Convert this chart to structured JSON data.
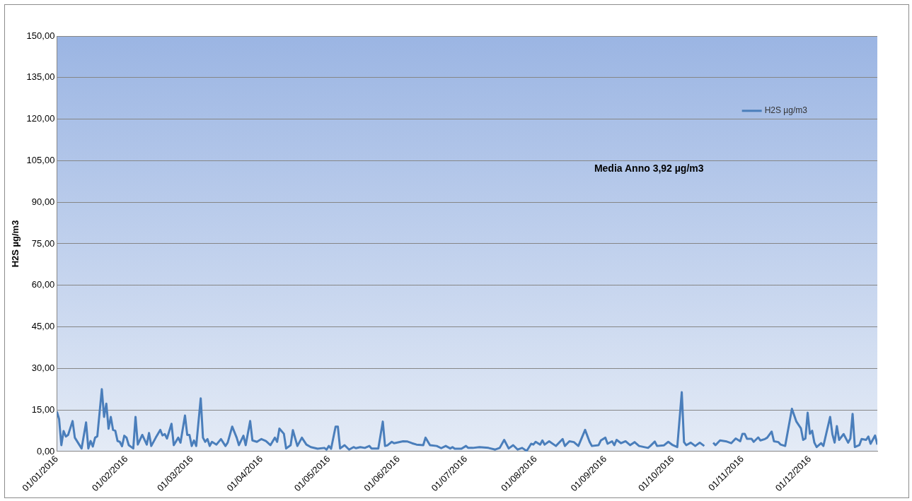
{
  "chart_data": {
    "type": "line",
    "ylabel": "H2S µg/m3",
    "annotations": [
      "Media Anno 3,92 µg/m3"
    ],
    "xlim": [
      "2016-01-01",
      "2016-12-31"
    ],
    "xticks": [
      {
        "value": "2016-01-01",
        "label": "01/01/2016"
      },
      {
        "value": "2016-02-01",
        "label": "01/02/2016"
      },
      {
        "value": "2016-03-01",
        "label": "01/03/2016"
      },
      {
        "value": "2016-04-01",
        "label": "01/04/2016"
      },
      {
        "value": "2016-05-01",
        "label": "01/05/2016"
      },
      {
        "value": "2016-06-01",
        "label": "01/06/2016"
      },
      {
        "value": "2016-07-01",
        "label": "01/07/2016"
      },
      {
        "value": "2016-08-01",
        "label": "01/08/2016"
      },
      {
        "value": "2016-09-01",
        "label": "01/09/2016"
      },
      {
        "value": "2016-10-01",
        "label": "01/10/2016"
      },
      {
        "value": "2016-11-01",
        "label": "01/11/2016"
      },
      {
        "value": "2016-12-01",
        "label": "01/12/2016"
      }
    ],
    "ylim": [
      0,
      150
    ],
    "yticks": [
      {
        "value": 0,
        "label": "0,00"
      },
      {
        "value": 15,
        "label": "15,00"
      },
      {
        "value": 30,
        "label": "30,00"
      },
      {
        "value": 45,
        "label": "45,00"
      },
      {
        "value": 60,
        "label": "60,00"
      },
      {
        "value": 75,
        "label": "75,00"
      },
      {
        "value": 90,
        "label": "90,00"
      },
      {
        "value": 105,
        "label": "105,00"
      },
      {
        "value": 120,
        "label": "120,00"
      },
      {
        "value": 135,
        "label": "135,00"
      },
      {
        "value": 150,
        "label": "150,00"
      }
    ],
    "grid": "y",
    "legend": "top right",
    "marker": "none",
    "line_style": "solid",
    "x": [
      "2016-01-01",
      "2016-01-02",
      "2016-01-03",
      "2016-01-04",
      "2016-01-05",
      "2016-01-06",
      "2016-01-08",
      "2016-01-09",
      "2016-01-12",
      "2016-01-14",
      "2016-01-15",
      "2016-01-16",
      "2016-01-17",
      "2016-01-18",
      "2016-01-19",
      "2016-01-21",
      "2016-01-22",
      "2016-01-23",
      "2016-01-24",
      "2016-01-25",
      "2016-01-26",
      "2016-01-27",
      "2016-01-28",
      "2016-01-29",
      "2016-01-30",
      "2016-01-31",
      "2016-02-01",
      "2016-02-02",
      "2016-02-04",
      "2016-02-05",
      "2016-02-06",
      "2016-02-08",
      "2016-02-10",
      "2016-02-11",
      "2016-02-12",
      "2016-02-14",
      "2016-02-16",
      "2016-02-17",
      "2016-02-18",
      "2016-02-19",
      "2016-02-21",
      "2016-02-22",
      "2016-02-24",
      "2016-02-25",
      "2016-02-27",
      "2016-02-28",
      "2016-02-29",
      "2016-03-01",
      "2016-03-02",
      "2016-03-03",
      "2016-03-05",
      "2016-03-06",
      "2016-03-07",
      "2016-03-08",
      "2016-03-09",
      "2016-03-10",
      "2016-03-12",
      "2016-03-14",
      "2016-03-16",
      "2016-03-17",
      "2016-03-19",
      "2016-03-21",
      "2016-03-22",
      "2016-03-24",
      "2016-03-25",
      "2016-03-27",
      "2016-03-28",
      "2016-03-30",
      "2016-04-01",
      "2016-04-03",
      "2016-04-05",
      "2016-04-07",
      "2016-04-08",
      "2016-04-09",
      "2016-04-11",
      "2016-04-12",
      "2016-04-14",
      "2016-04-15",
      "2016-04-17",
      "2016-04-19",
      "2016-04-21",
      "2016-04-23",
      "2016-04-26",
      "2016-04-29",
      "2016-04-30",
      "2016-05-01",
      "2016-05-02",
      "2016-05-04",
      "2016-05-05",
      "2016-05-06",
      "2016-05-08",
      "2016-05-10",
      "2016-05-12",
      "2016-05-13",
      "2016-05-15",
      "2016-05-17",
      "2016-05-19",
      "2016-05-20",
      "2016-05-23",
      "2016-05-25",
      "2016-05-26",
      "2016-05-27",
      "2016-05-29",
      "2016-05-30",
      "2016-06-03",
      "2016-06-05",
      "2016-06-07",
      "2016-06-09",
      "2016-06-12",
      "2016-06-13",
      "2016-06-15",
      "2016-06-18",
      "2016-06-20",
      "2016-06-22",
      "2016-06-24",
      "2016-06-25",
      "2016-06-26",
      "2016-06-29",
      "2016-07-01",
      "2016-07-02",
      "2016-07-04",
      "2016-07-07",
      "2016-07-11",
      "2016-07-14",
      "2016-07-16",
      "2016-07-18",
      "2016-07-20",
      "2016-07-22",
      "2016-07-24",
      "2016-07-26",
      "2016-07-28",
      "2016-07-30",
      "2016-07-31",
      "2016-08-01",
      "2016-08-03",
      "2016-08-04",
      "2016-08-05",
      "2016-08-07",
      "2016-08-10",
      "2016-08-13",
      "2016-08-14",
      "2016-08-16",
      "2016-08-18",
      "2016-08-20",
      "2016-08-23",
      "2016-08-25",
      "2016-08-26",
      "2016-08-29",
      "2016-08-30",
      "2016-09-01",
      "2016-09-02",
      "2016-09-04",
      "2016-09-05",
      "2016-09-06",
      "2016-09-08",
      "2016-09-10",
      "2016-09-12",
      "2016-09-14",
      "2016-09-16",
      "2016-09-20",
      "2016-09-21",
      "2016-09-23",
      "2016-09-24",
      "2016-09-27",
      "2016-09-29",
      "2016-10-01",
      "2016-10-03",
      "2016-10-05",
      "2016-10-06",
      "2016-10-07",
      "2016-10-09",
      "2016-10-11",
      "2016-10-13",
      "2016-10-15",
      "2016-10-16",
      "2016-10-19",
      "2016-10-20",
      "2016-10-22",
      "2016-10-25",
      "2016-10-27",
      "2016-10-29",
      "2016-10-31",
      "2016-11-01",
      "2016-11-02",
      "2016-11-03",
      "2016-11-05",
      "2016-11-06",
      "2016-11-08",
      "2016-11-09",
      "2016-11-11",
      "2016-11-12",
      "2016-11-14",
      "2016-11-15",
      "2016-11-17",
      "2016-11-18",
      "2016-11-20",
      "2016-11-23",
      "2016-11-25",
      "2016-11-27",
      "2016-11-28",
      "2016-11-29",
      "2016-11-30",
      "2016-12-01",
      "2016-12-02",
      "2016-12-03",
      "2016-12-04",
      "2016-12-06",
      "2016-12-07",
      "2016-12-10",
      "2016-12-11",
      "2016-12-12",
      "2016-12-13",
      "2016-12-14",
      "2016-12-16",
      "2016-12-18",
      "2016-12-19",
      "2016-12-20",
      "2016-12-21",
      "2016-12-23",
      "2016-12-24",
      "2016-12-26",
      "2016-12-27",
      "2016-12-28",
      "2016-12-30",
      "2016-12-31"
    ],
    "series": [
      {
        "name": "H2S µg/m3",
        "color": "#4a7ebb",
        "values": [
          14.4,
          11.7,
          2.3,
          7.4,
          5.4,
          6,
          11,
          5,
          1.1,
          10.5,
          1.1,
          3.8,
          1.8,
          5,
          5.5,
          22.5,
          12.5,
          17.3,
          8.2,
          12.5,
          7.8,
          7.5,
          3.8,
          3.5,
          1.9,
          5.7,
          5,
          2.3,
          1.1,
          12.5,
          2.5,
          6,
          2.5,
          6.7,
          2,
          5,
          7.8,
          5.8,
          6.3,
          4.7,
          10,
          2.3,
          5,
          3.2,
          13,
          6,
          6,
          2,
          4,
          2,
          19.2,
          5,
          3.5,
          4.5,
          2,
          3.5,
          2.5,
          4.5,
          2,
          3.2,
          9,
          5,
          2.3,
          5.7,
          2.3,
          11,
          4,
          3.5,
          4.5,
          3.8,
          2.3,
          5,
          3.5,
          8.3,
          6.4,
          1.1,
          2.3,
          7.7,
          2,
          5,
          2.5,
          1.6,
          1,
          1.3,
          0.7,
          2,
          1,
          9,
          9,
          1.1,
          2.3,
          0.7,
          1.6,
          1.2,
          1.6,
          1.3,
          2,
          1.1,
          1.1,
          10.8,
          2,
          2.2,
          3.5,
          3,
          3.7,
          3.6,
          3,
          2.5,
          2.3,
          5,
          2.3,
          2,
          1.2,
          2,
          1.1,
          1.6,
          1,
          1,
          2,
          1.3,
          1.3,
          1.6,
          1.3,
          0.7,
          1.3,
          4.2,
          1.1,
          2.3,
          0.7,
          1.3,
          0.2,
          2.8,
          2.5,
          3.5,
          2.5,
          4,
          2.5,
          3.7,
          2,
          4.5,
          2,
          3.7,
          3.4,
          2,
          7.8,
          3.5,
          2,
          2.3,
          4,
          5,
          2.8,
          3.7,
          2.3,
          4.2,
          3,
          3.7,
          2.3,
          3.4,
          2,
          1.3,
          2,
          3.6,
          2,
          2.2,
          3.5,
          2.3,
          1.6,
          21.4,
          3.4,
          2.3,
          3.2,
          2,
          3.2,
          2,
          null,
          3.2,
          2.3,
          4,
          3.6,
          3,
          4.7,
          3.7,
          6.4,
          6.4,
          4.6,
          4.6,
          3.5,
          5.1,
          4,
          4.5,
          5,
          7.2,
          3.7,
          3.4,
          2.5,
          2,
          15.4,
          10.8,
          8.4,
          4.2,
          4.7,
          14,
          6.4,
          7.5,
          3.2,
          1.6,
          3,
          2,
          12.5,
          6.3,
          3.2,
          9.2,
          4.2,
          6.3,
          3.2,
          4.7,
          13.6,
          1.6,
          2.3,
          4.5,
          4.2,
          5.4,
          2.8,
          5.8,
          2.5
        ]
      }
    ]
  }
}
